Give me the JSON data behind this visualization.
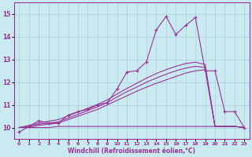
{
  "xlabel": "Windchill (Refroidissement éolien,°C)",
  "ylabel": "",
  "background_color": "#c8eaf0",
  "grid_color": "#a8d0dc",
  "line_color": "#993399",
  "xlim": [
    -0.5,
    23.5
  ],
  "ylim": [
    9.5,
    15.5
  ],
  "yticks": [
    10,
    11,
    12,
    13,
    14,
    15
  ],
  "xticks": [
    0,
    1,
    2,
    3,
    4,
    5,
    6,
    7,
    8,
    9,
    10,
    11,
    12,
    13,
    14,
    15,
    16,
    17,
    18,
    19,
    20,
    21,
    22,
    23
  ],
  "x_jagged": [
    0,
    1,
    2,
    3,
    4,
    5,
    6,
    7,
    8,
    9,
    10,
    11,
    12,
    13,
    14,
    15,
    16,
    17,
    18,
    19,
    20,
    21,
    22,
    23
  ],
  "y_jagged": [
    9.8,
    10.05,
    10.3,
    10.2,
    10.2,
    10.55,
    10.7,
    10.8,
    11.0,
    11.1,
    11.7,
    12.45,
    12.5,
    12.9,
    14.3,
    14.9,
    14.1,
    14.5,
    14.85,
    12.5,
    12.5,
    10.7,
    10.7,
    10.0
  ],
  "x_flat": [
    0,
    1,
    2,
    3,
    4,
    5,
    6,
    7,
    8,
    9,
    10,
    11,
    12,
    13,
    14,
    15,
    16,
    17,
    18,
    19,
    20,
    21,
    22,
    23
  ],
  "y_flat": [
    10.0,
    10.0,
    10.0,
    10.0,
    10.05,
    10.05,
    10.05,
    10.05,
    10.05,
    10.05,
    10.05,
    10.05,
    10.05,
    10.05,
    10.05,
    10.05,
    10.05,
    10.05,
    10.05,
    10.05,
    10.05,
    10.05,
    10.05,
    10.0
  ],
  "x_diag1": [
    0,
    1,
    2,
    3,
    4,
    5,
    6,
    7,
    8,
    9,
    10,
    11,
    12,
    13,
    14,
    15,
    16,
    17,
    18,
    19,
    20,
    21,
    22,
    23
  ],
  "y_diag1": [
    10.0,
    10.0,
    10.1,
    10.15,
    10.2,
    10.35,
    10.5,
    10.65,
    10.8,
    11.0,
    11.2,
    11.4,
    11.6,
    11.78,
    11.95,
    12.1,
    12.25,
    12.4,
    12.5,
    12.55,
    10.05,
    10.05,
    10.05,
    10.0
  ],
  "x_diag2": [
    0,
    1,
    2,
    3,
    4,
    5,
    6,
    7,
    8,
    9,
    10,
    11,
    12,
    13,
    14,
    15,
    16,
    17,
    18,
    19,
    20,
    21,
    22,
    23
  ],
  "y_diag2": [
    10.0,
    10.05,
    10.15,
    10.2,
    10.25,
    10.42,
    10.58,
    10.75,
    10.92,
    11.1,
    11.35,
    11.58,
    11.78,
    12.0,
    12.18,
    12.35,
    12.5,
    12.62,
    12.7,
    12.65,
    10.05,
    10.05,
    10.05,
    10.0
  ],
  "x_diag3": [
    0,
    1,
    2,
    3,
    4,
    5,
    6,
    7,
    8,
    9,
    10,
    11,
    12,
    13,
    14,
    15,
    16,
    17,
    18,
    19,
    20,
    21,
    22,
    23
  ],
  "y_diag3": [
    10.0,
    10.1,
    10.2,
    10.28,
    10.35,
    10.52,
    10.68,
    10.85,
    11.02,
    11.22,
    11.48,
    11.72,
    11.95,
    12.18,
    12.38,
    12.55,
    12.7,
    12.82,
    12.88,
    12.78,
    10.05,
    10.05,
    10.05,
    10.0
  ]
}
